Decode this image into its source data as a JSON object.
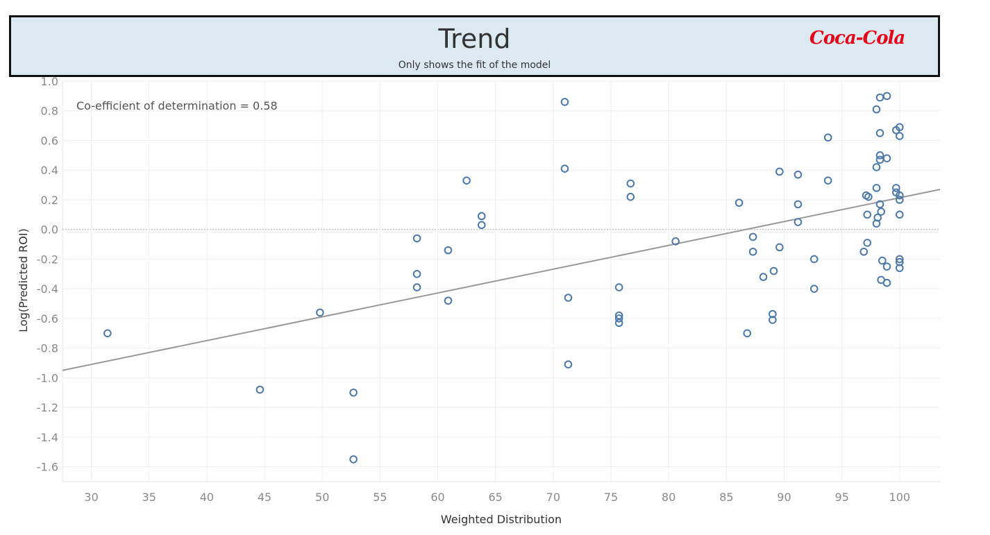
{
  "header": {
    "title": "Trend",
    "subtitle": "Only shows the fit of the model",
    "logo_text": "Coca-Cola",
    "logo_color": "#e4001b",
    "background_color": "#dde9f0"
  },
  "chart_data": {
    "type": "scatter",
    "title": "Trend",
    "subtitle": "Only shows the fit of the model",
    "xlabel": "Weighted Distribution",
    "ylabel": "Log(Predicted ROI)",
    "xlim": [
      27.5,
      103.5
    ],
    "ylim": [
      -1.7,
      1.0
    ],
    "xticks": [
      30,
      35,
      40,
      45,
      50,
      55,
      60,
      65,
      70,
      75,
      80,
      85,
      90,
      95,
      100
    ],
    "yticks": [
      1.0,
      0.8,
      0.6,
      0.4,
      0.2,
      0.0,
      -0.2,
      -0.4,
      -0.6,
      -0.8,
      -1.0,
      -1.2,
      -1.4,
      -1.6
    ],
    "ytick_labels": [
      "1.0",
      "0.8",
      "0.6",
      "0.4",
      "0.2",
      "0.0",
      "-0.2",
      "-0.4",
      "-0.6",
      "-0.8",
      "-1.0",
      "-1.2",
      "-1.4",
      "-1.6"
    ],
    "grid": true,
    "zero_line": true,
    "annotation": "Co-efficient of determination = 0.58",
    "marker_color": "#4e79a7",
    "trend_color": "#999999",
    "trend_line": {
      "x": [
        27.5,
        103.5
      ],
      "y": [
        -0.95,
        0.27
      ]
    },
    "points": {
      "x": [
        31.4,
        44.6,
        49.8,
        52.7,
        52.7,
        58.2,
        58.2,
        58.2,
        60.9,
        60.9,
        62.5,
        63.8,
        63.8,
        71.0,
        71.0,
        71.3,
        71.3,
        75.7,
        75.7,
        75.7,
        75.7,
        76.7,
        76.7,
        80.6,
        86.1,
        86.8,
        87.3,
        87.3,
        88.2,
        89.0,
        89.0,
        89.1,
        89.6,
        89.6,
        91.2,
        91.2,
        91.2,
        92.6,
        92.6,
        93.8,
        93.8,
        96.9,
        97.1,
        97.2,
        97.2,
        97.3,
        98.0,
        98.0,
        98.0,
        98.0,
        98.1,
        98.3,
        98.3,
        98.3,
        98.3,
        98.3,
        98.4,
        98.4,
        98.5,
        98.9,
        98.9,
        98.9,
        98.9,
        99.7,
        99.7,
        99.7,
        100.0,
        100.0,
        100.0,
        100.0,
        100.0,
        100.0,
        100.0,
        100.0
      ],
      "y": [
        -0.7,
        -1.08,
        -0.56,
        -1.1,
        -1.55,
        -0.06,
        -0.3,
        -0.39,
        -0.14,
        -0.48,
        0.33,
        0.09,
        0.03,
        0.86,
        0.41,
        -0.46,
        -0.91,
        -0.39,
        -0.58,
        -0.6,
        -0.63,
        0.31,
        0.22,
        -0.08,
        0.18,
        -0.7,
        -0.05,
        -0.15,
        -0.32,
        -0.57,
        -0.61,
        -0.28,
        0.39,
        -0.12,
        0.37,
        0.17,
        0.05,
        -0.2,
        -0.4,
        0.62,
        0.33,
        -0.15,
        0.23,
        -0.09,
        0.1,
        0.22,
        0.81,
        0.42,
        0.28,
        0.04,
        0.08,
        0.89,
        0.65,
        0.5,
        0.47,
        0.17,
        0.12,
        -0.34,
        -0.21,
        0.9,
        0.48,
        -0.25,
        -0.36,
        0.67,
        0.28,
        0.25,
        0.69,
        0.63,
        0.23,
        0.2,
        0.1,
        -0.2,
        -0.22,
        -0.26
      ]
    }
  }
}
